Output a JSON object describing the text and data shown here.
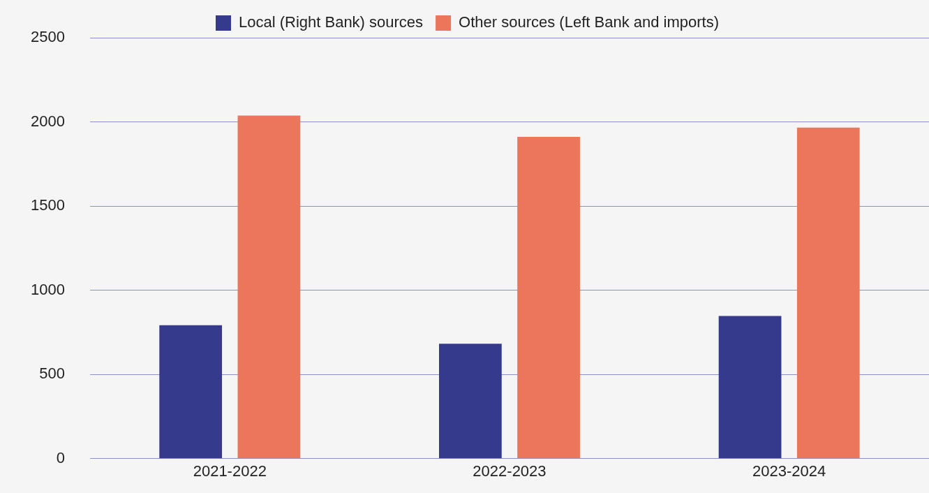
{
  "chart_data": {
    "type": "bar",
    "categories": [
      "2021-2022",
      "2022-2023",
      "2023-2024"
    ],
    "series": [
      {
        "name": "Local (Right Bank) sources",
        "color": "#363a8c",
        "values": [
          792,
          682,
          847
        ]
      },
      {
        "name": "Other sources (Left Bank and imports)",
        "color": "#ec765c",
        "values": [
          2038,
          1911,
          1966
        ]
      }
    ],
    "ylim": [
      0,
      2500
    ],
    "yticks": [
      0,
      500,
      1000,
      1500,
      2000,
      2500
    ],
    "grid": "y",
    "legend": "top"
  }
}
